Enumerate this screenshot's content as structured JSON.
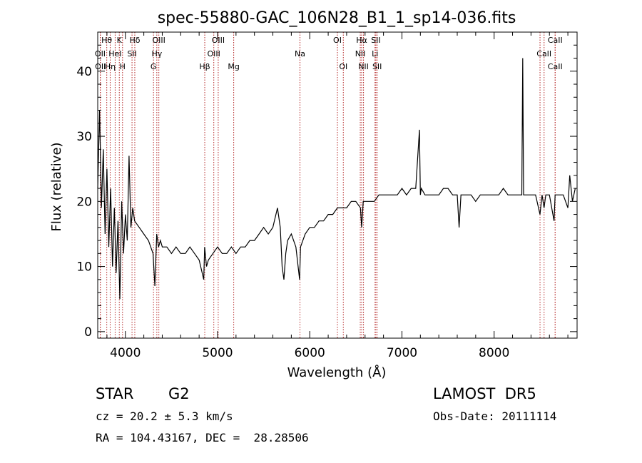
{
  "chart_data": {
    "type": "line",
    "title": "spec-55880-GAC_106N28_B1_1_sp14-036.fits",
    "xlabel": "Wavelength (Å)",
    "ylabel": "Flux (relative)",
    "xlim": [
      3700,
      8900
    ],
    "ylim": [
      -1,
      46
    ],
    "xticks": [
      4000,
      5000,
      6000,
      7000,
      8000
    ],
    "yticks": [
      0,
      10,
      20,
      30,
      40
    ],
    "grid": false,
    "series": [
      {
        "x": [
          3700,
          3720,
          3740,
          3760,
          3780,
          3800,
          3820,
          3840,
          3860,
          3880,
          3900,
          3920,
          3940,
          3960,
          3980,
          4000,
          4020,
          4040,
          4060,
          4080,
          4100,
          4150,
          4200,
          4250,
          4300,
          4320,
          4340,
          4360,
          4380,
          4400,
          4450,
          4500,
          4550,
          4600,
          4650,
          4700,
          4750,
          4800,
          4850,
          4860,
          4880,
          4900,
          4950,
          5000,
          5050,
          5100,
          5150,
          5200,
          5250,
          5300,
          5350,
          5400,
          5450,
          5500,
          5550,
          5600,
          5650,
          5680,
          5700,
          5720,
          5740,
          5760,
          5800,
          5850,
          5890,
          5900,
          5950,
          6000,
          6050,
          6100,
          6150,
          6200,
          6250,
          6300,
          6350,
          6400,
          6450,
          6500,
          6550,
          6563,
          6580,
          6600,
          6650,
          6700,
          6750,
          6800,
          6850,
          6900,
          6950,
          7000,
          7050,
          7100,
          7150,
          7190,
          7200,
          7210,
          7250,
          7300,
          7350,
          7400,
          7450,
          7500,
          7550,
          7600,
          7620,
          7640,
          7650,
          7700,
          7750,
          7800,
          7850,
          7900,
          7950,
          8000,
          8050,
          8100,
          8150,
          8200,
          8250,
          8300,
          8310,
          8320,
          8330,
          8350,
          8400,
          8450,
          8498,
          8520,
          8542,
          8560,
          8600,
          8650,
          8662,
          8700,
          8750,
          8800,
          8820,
          8850,
          8880
        ],
        "values": [
          22,
          34,
          19,
          28,
          15,
          25,
          13,
          22,
          10,
          19,
          9,
          17,
          5,
          20,
          12,
          18,
          14,
          27,
          16,
          19,
          17,
          16,
          15,
          14,
          12,
          7,
          15,
          13,
          14,
          13,
          13,
          12,
          13,
          12,
          12,
          13,
          12,
          11,
          8,
          13,
          10,
          11,
          12,
          13,
          12,
          12,
          13,
          12,
          13,
          13,
          14,
          14,
          15,
          16,
          15,
          16,
          19,
          16,
          10,
          8,
          12,
          14,
          15,
          13,
          8,
          13,
          15,
          16,
          16,
          17,
          17,
          18,
          18,
          19,
          19,
          19,
          20,
          20,
          19,
          16,
          20,
          20,
          20,
          20,
          21,
          21,
          21,
          21,
          21,
          22,
          21,
          22,
          22,
          31,
          21,
          22,
          21,
          21,
          21,
          21,
          22,
          22,
          21,
          21,
          16,
          21,
          21,
          21,
          21,
          20,
          21,
          21,
          21,
          21,
          21,
          22,
          21,
          21,
          21,
          21,
          42,
          21,
          21,
          21,
          21,
          21,
          18,
          21,
          19,
          21,
          21,
          17,
          21,
          21,
          21,
          19,
          24,
          20,
          22
        ]
      }
    ],
    "lines": [
      {
        "label": "Hθ",
        "x": 3798,
        "row": 0
      },
      {
        "label": "OII",
        "x": 3727,
        "row": 1
      },
      {
        "label": "OII",
        "x": 3729,
        "row": 2
      },
      {
        "label": "Hη",
        "x": 3835,
        "row": 2
      },
      {
        "label": "HeI",
        "x": 3889,
        "row": 1
      },
      {
        "label": "K",
        "x": 3934,
        "row": 0
      },
      {
        "label": "H",
        "x": 3969,
        "row": 2
      },
      {
        "label": "Hδ",
        "x": 4102,
        "row": 0
      },
      {
        "label": "SII",
        "x": 4072,
        "row": 1
      },
      {
        "label": "OIII",
        "x": 4363,
        "row": 0
      },
      {
        "label": "Hγ",
        "x": 4341,
        "row": 1
      },
      {
        "label": "G",
        "x": 4305,
        "row": 2
      },
      {
        "label": "Hβ",
        "x": 4861,
        "row": 2
      },
      {
        "label": "OIII",
        "x": 5007,
        "row": 0
      },
      {
        "label": "OIII",
        "x": 4959,
        "row": 1
      },
      {
        "label": "Mg",
        "x": 5175,
        "row": 2
      },
      {
        "label": "Na",
        "x": 5894,
        "row": 1
      },
      {
        "label": "OI",
        "x": 6300,
        "row": 0
      },
      {
        "label": "OI",
        "x": 6364,
        "row": 2
      },
      {
        "label": "Hα",
        "x": 6563,
        "row": 0
      },
      {
        "label": "NII",
        "x": 6548,
        "row": 1
      },
      {
        "label": "NII",
        "x": 6583,
        "row": 2
      },
      {
        "label": "SII",
        "x": 6717,
        "row": 0
      },
      {
        "label": "Li",
        "x": 6708,
        "row": 1
      },
      {
        "label": "SII",
        "x": 6731,
        "row": 2
      },
      {
        "label": "CaII",
        "x": 8662,
        "row": 0
      },
      {
        "label": "CaII",
        "x": 8542,
        "row": 1
      },
      {
        "label": "CaII",
        "x": 8662,
        "row": 2
      },
      {
        "label": "",
        "x": 8498,
        "row": 3
      }
    ]
  },
  "info": {
    "object_class": "STAR",
    "subclass": "G2",
    "survey": "LAMOST  DR5",
    "cz": "cz = 20.2 ± 5.3 km/s",
    "obs_date": "Obs-Date: 20111114",
    "coords": "RA = 104.43167, DEC =  28.28506"
  },
  "colors": {
    "line_marker": "#b22222",
    "spectrum": "#000000"
  }
}
